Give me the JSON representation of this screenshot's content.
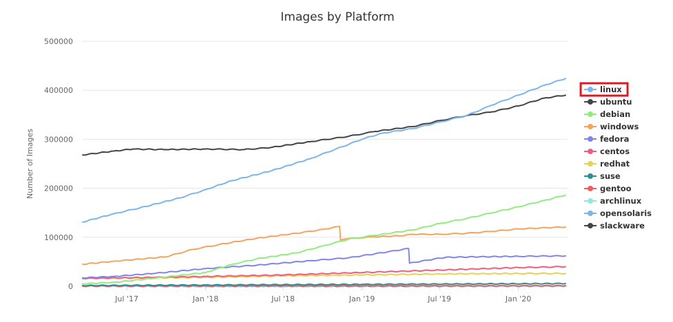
{
  "chart_data": {
    "type": "line",
    "title": "Images by Platform",
    "ylabel": "Number of Images",
    "ylim": [
      0,
      500000
    ],
    "yticks": [
      0,
      100000,
      200000,
      300000,
      400000,
      500000
    ],
    "ytick_labels": [
      "0",
      "100000",
      "200000",
      "300000",
      "400000",
      "500000"
    ],
    "xlim": [
      "2017-03-20",
      "2020-04-25"
    ],
    "xticks": [
      "2017-07-01",
      "2018-01-01",
      "2018-07-01",
      "2019-01-01",
      "2019-07-01",
      "2020-01-01"
    ],
    "xtick_labels": [
      "Jul '17",
      "Jan '18",
      "Jul '18",
      "Jan '19",
      "Jul '19",
      "Jan '20"
    ],
    "grid": true,
    "legend_position": "right",
    "highlighted_legend_item": "linux",
    "highlight_color": "#e0191f",
    "series": [
      {
        "name": "linux",
        "color": "#7cb5ec",
        "points": [
          [
            "2017-03-20",
            131000
          ],
          [
            "2017-06-01",
            148000
          ],
          [
            "2017-08-01",
            160000
          ],
          [
            "2017-11-01",
            180000
          ],
          [
            "2018-01-01",
            197000
          ],
          [
            "2018-03-01",
            215000
          ],
          [
            "2018-06-01",
            235000
          ],
          [
            "2018-09-01",
            260000
          ],
          [
            "2018-11-01",
            280000
          ],
          [
            "2019-01-01",
            300000
          ],
          [
            "2019-02-15",
            312000
          ],
          [
            "2019-05-01",
            322000
          ],
          [
            "2019-07-01",
            335000
          ],
          [
            "2019-09-01",
            348000
          ],
          [
            "2019-11-01",
            370000
          ],
          [
            "2020-01-01",
            390000
          ],
          [
            "2020-03-01",
            410000
          ],
          [
            "2020-04-20",
            424000
          ]
        ]
      },
      {
        "name": "ubuntu",
        "color": "#434348",
        "points": [
          [
            "2017-03-20",
            268000
          ],
          [
            "2017-06-01",
            276000
          ],
          [
            "2017-07-15",
            280000
          ],
          [
            "2017-10-01",
            279000
          ],
          [
            "2018-01-01",
            280000
          ],
          [
            "2018-04-01",
            279000
          ],
          [
            "2018-06-01",
            283000
          ],
          [
            "2018-09-01",
            295000
          ],
          [
            "2018-12-01",
            306000
          ],
          [
            "2019-02-01",
            316000
          ],
          [
            "2019-05-01",
            326000
          ],
          [
            "2019-07-01",
            338000
          ],
          [
            "2019-09-01",
            348000
          ],
          [
            "2019-11-01",
            356000
          ],
          [
            "2020-01-01",
            368000
          ],
          [
            "2020-03-01",
            384000
          ],
          [
            "2020-04-20",
            390000
          ]
        ]
      },
      {
        "name": "debian",
        "color": "#90ed7d",
        "points": [
          [
            "2017-03-20",
            5000
          ],
          [
            "2017-06-01",
            8000
          ],
          [
            "2017-09-01",
            16000
          ],
          [
            "2018-01-01",
            28000
          ],
          [
            "2018-03-01",
            44000
          ],
          [
            "2018-05-01",
            56000
          ],
          [
            "2018-08-01",
            68000
          ],
          [
            "2018-10-01",
            82000
          ],
          [
            "2018-12-01",
            96000
          ],
          [
            "2019-02-01",
            104000
          ],
          [
            "2019-05-01",
            115000
          ],
          [
            "2019-07-01",
            128000
          ],
          [
            "2019-09-01",
            138000
          ],
          [
            "2019-11-01",
            150000
          ],
          [
            "2020-01-01",
            162000
          ],
          [
            "2020-03-01",
            175000
          ],
          [
            "2020-04-20",
            186000
          ]
        ]
      },
      {
        "name": "windows",
        "color": "#f7a35c",
        "points": [
          [
            "2017-03-20",
            45000
          ],
          [
            "2017-06-01",
            51000
          ],
          [
            "2017-10-01",
            60000
          ],
          [
            "2017-12-01",
            75000
          ],
          [
            "2018-02-01",
            85000
          ],
          [
            "2018-05-01",
            98000
          ],
          [
            "2018-08-01",
            108000
          ],
          [
            "2018-10-01",
            116000
          ],
          [
            "2018-11-10",
            122000
          ],
          [
            "2018-11-12",
            94000
          ],
          [
            "2018-12-01",
            97000
          ],
          [
            "2019-02-01",
            101000
          ],
          [
            "2019-04-01",
            103000
          ],
          [
            "2019-05-01",
            106000
          ],
          [
            "2019-07-01",
            106000
          ],
          [
            "2019-09-01",
            108000
          ],
          [
            "2019-11-01",
            112000
          ],
          [
            "2020-01-01",
            117000
          ],
          [
            "2020-04-20",
            121000
          ]
        ]
      },
      {
        "name": "fedora",
        "color": "#8085e9",
        "points": [
          [
            "2017-03-20",
            17000
          ],
          [
            "2017-06-01",
            20000
          ],
          [
            "2017-09-01",
            26000
          ],
          [
            "2018-01-01",
            36000
          ],
          [
            "2018-05-01",
            43000
          ],
          [
            "2018-09-01",
            52000
          ],
          [
            "2018-12-01",
            58000
          ],
          [
            "2019-03-01",
            70000
          ],
          [
            "2019-04-20",
            77000
          ],
          [
            "2019-04-22",
            47000
          ],
          [
            "2019-06-01",
            53000
          ],
          [
            "2019-07-15",
            59000
          ],
          [
            "2019-10-01",
            60000
          ],
          [
            "2020-01-01",
            61000
          ],
          [
            "2020-04-20",
            62000
          ]
        ]
      },
      {
        "name": "centos",
        "color": "#f15c80",
        "points": [
          [
            "2017-03-20",
            16000
          ],
          [
            "2017-09-01",
            18000
          ],
          [
            "2018-01-01",
            20000
          ],
          [
            "2018-07-01",
            23000
          ],
          [
            "2019-01-01",
            28000
          ],
          [
            "2019-07-01",
            33000
          ],
          [
            "2020-01-01",
            38000
          ],
          [
            "2020-04-20",
            40000
          ]
        ]
      },
      {
        "name": "redhat",
        "color": "#e4d354",
        "points": [
          [
            "2017-03-20",
            16000
          ],
          [
            "2017-09-01",
            17000
          ],
          [
            "2018-01-01",
            18000
          ],
          [
            "2018-07-01",
            21000
          ],
          [
            "2019-01-01",
            23000
          ],
          [
            "2019-07-01",
            25000
          ],
          [
            "2020-01-01",
            26000
          ],
          [
            "2020-04-20",
            26000
          ]
        ]
      },
      {
        "name": "suse",
        "color": "#2b908f",
        "points": [
          [
            "2017-03-20",
            1500
          ],
          [
            "2018-01-01",
            2500
          ],
          [
            "2019-01-01",
            3800
          ],
          [
            "2020-04-20",
            5500
          ]
        ]
      },
      {
        "name": "gentoo",
        "color": "#f45b5b",
        "points": [
          [
            "2017-03-20",
            500
          ],
          [
            "2018-01-01",
            700
          ],
          [
            "2019-01-01",
            900
          ],
          [
            "2020-04-20",
            1200
          ]
        ]
      },
      {
        "name": "archlinux",
        "color": "#91e8e1",
        "points": [
          [
            "2017-03-20",
            300
          ],
          [
            "2018-01-01",
            500
          ],
          [
            "2019-01-01",
            700
          ],
          [
            "2020-04-20",
            900
          ]
        ]
      },
      {
        "name": "opensolaris",
        "color": "#7cb5ec",
        "points": [
          [
            "2017-03-20",
            100
          ],
          [
            "2020-04-20",
            150
          ]
        ]
      },
      {
        "name": "slackware",
        "color": "#434348",
        "points": [
          [
            "2017-03-20",
            200
          ],
          [
            "2018-06-01",
            250
          ],
          [
            "2020-04-20",
            350
          ]
        ]
      }
    ]
  }
}
